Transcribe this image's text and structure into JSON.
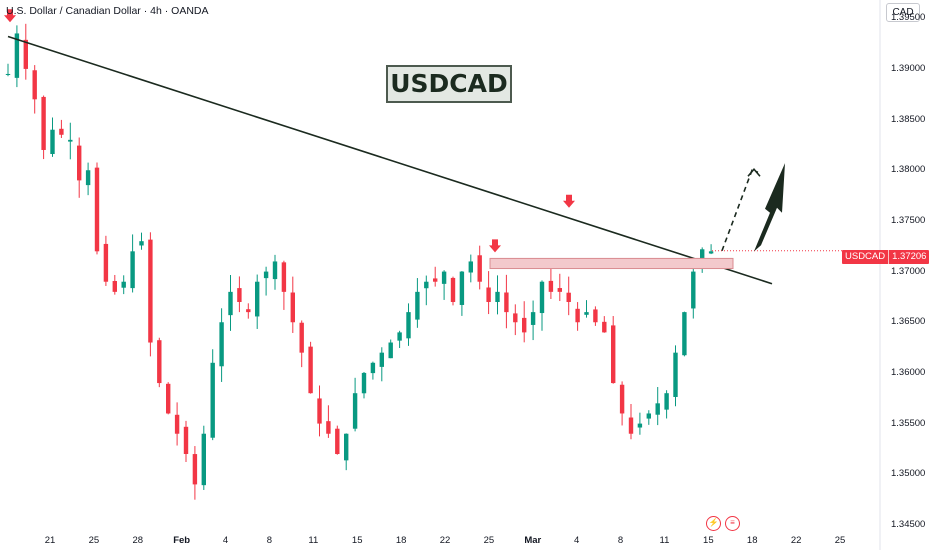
{
  "header": {
    "symbol_title": "U.S. Dollar / Canadian Dollar · 4h · OANDA",
    "currency_button": "CAD"
  },
  "annotation": {
    "label": "USDCAD"
  },
  "price_tag": {
    "symbol": "USDCAD",
    "value": "1.37206"
  },
  "colors": {
    "up": "#089981",
    "down": "#f23645",
    "trendline": "#1b2a1f",
    "zone_fill": "#f3c9cc",
    "zone_stroke": "#d98b90",
    "arrow": "#1b2a1f",
    "price_line": "#f23645"
  },
  "icons": {
    "marker": "red-down-arrow-icon",
    "bottom": [
      "flag-icon",
      "calendar-icon"
    ]
  },
  "bottom_icons": [
    "⚡",
    "≡"
  ],
  "chart_data": {
    "type": "candlestick",
    "title": "U.S. Dollar / Canadian Dollar · 4h · OANDA",
    "ylim": [
      1.3445,
      1.3968
    ],
    "y_ticks": [
      "1.39500",
      "1.39000",
      "1.38500",
      "1.38000",
      "1.37500",
      "1.37000",
      "1.36500",
      "1.36000",
      "1.35500",
      "1.35000",
      "1.34500"
    ],
    "x_ticks": [
      "21",
      "25",
      "28",
      "Feb",
      "4",
      "8",
      "11",
      "15",
      "18",
      "22",
      "25",
      "Mar",
      "4",
      "8",
      "11",
      "15",
      "18",
      "22",
      "25"
    ],
    "last_price": 1.37206,
    "path_close": [
      [
        0,
        1.3895
      ],
      [
        1,
        1.3935
      ],
      [
        2,
        1.39
      ],
      [
        3,
        1.387
      ],
      [
        4,
        1.382
      ],
      [
        5,
        1.384
      ],
      [
        6,
        1.3835
      ],
      [
        7,
        1.383
      ],
      [
        8,
        1.379
      ],
      [
        9,
        1.38
      ],
      [
        10,
        1.372
      ],
      [
        11,
        1.369
      ],
      [
        12,
        1.368
      ],
      [
        13,
        1.369
      ],
      [
        14,
        1.372
      ],
      [
        15,
        1.373
      ],
      [
        16,
        1.363
      ],
      [
        17,
        1.359
      ],
      [
        18,
        1.356
      ],
      [
        19,
        1.354
      ],
      [
        20,
        1.352
      ],
      [
        21,
        1.349
      ],
      [
        22,
        1.354
      ],
      [
        23,
        1.361
      ],
      [
        24,
        1.365
      ],
      [
        25,
        1.368
      ],
      [
        26,
        1.367
      ],
      [
        27,
        1.366
      ],
      [
        28,
        1.369
      ],
      [
        29,
        1.37
      ],
      [
        30,
        1.371
      ],
      [
        31,
        1.368
      ],
      [
        32,
        1.365
      ],
      [
        33,
        1.362
      ],
      [
        34,
        1.358
      ],
      [
        35,
        1.355
      ],
      [
        36,
        1.354
      ],
      [
        37,
        1.352
      ],
      [
        38,
        1.354
      ],
      [
        39,
        1.358
      ],
      [
        40,
        1.36
      ],
      [
        41,
        1.361
      ],
      [
        42,
        1.362
      ],
      [
        43,
        1.363
      ],
      [
        44,
        1.364
      ],
      [
        45,
        1.366
      ],
      [
        46,
        1.368
      ],
      [
        47,
        1.369
      ],
      [
        48,
        1.369
      ],
      [
        49,
        1.37
      ],
      [
        50,
        1.367
      ],
      [
        51,
        1.37
      ],
      [
        52,
        1.371
      ],
      [
        53,
        1.369
      ],
      [
        54,
        1.367
      ],
      [
        55,
        1.368
      ],
      [
        56,
        1.366
      ],
      [
        57,
        1.365
      ],
      [
        58,
        1.364
      ],
      [
        59,
        1.366
      ],
      [
        60,
        1.369
      ],
      [
        61,
        1.368
      ],
      [
        62,
        1.368
      ],
      [
        63,
        1.367
      ],
      [
        64,
        1.365
      ],
      [
        65,
        1.366
      ],
      [
        66,
        1.365
      ],
      [
        67,
        1.364
      ],
      [
        68,
        1.359
      ],
      [
        69,
        1.356
      ],
      [
        70,
        1.354
      ],
      [
        71,
        1.355
      ],
      [
        72,
        1.356
      ],
      [
        73,
        1.357
      ],
      [
        74,
        1.358
      ],
      [
        75,
        1.362
      ],
      [
        76,
        1.366
      ],
      [
        77,
        1.37
      ],
      [
        78,
        1.3722
      ],
      [
        79,
        1.372
      ]
    ],
    "markers": [
      {
        "label": "swing-high-1",
        "price": 1.3945
      },
      {
        "label": "swing-high-2",
        "price": 1.3718
      },
      {
        "label": "swing-high-3",
        "price": 1.3762
      }
    ],
    "trendline": {
      "from": 1.3932,
      "to": 1.3688
    },
    "resistance_zone": {
      "top": 1.3713,
      "bottom": 1.3703
    },
    "projection_target": 1.38
  }
}
